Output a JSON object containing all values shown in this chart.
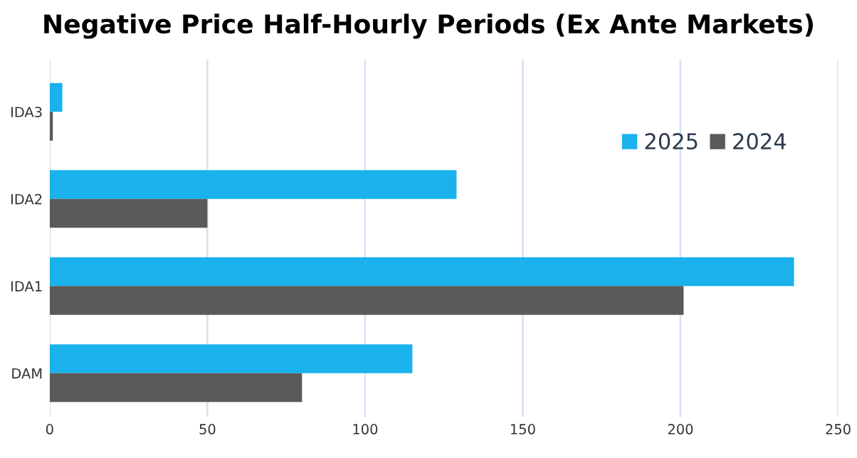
{
  "chart_data": {
    "type": "bar",
    "orientation": "horizontal",
    "title": "Negative Price Half-Hourly Periods (Ex Ante Markets)",
    "categories": [
      "IDA3",
      "IDA2",
      "IDA1",
      "DAM"
    ],
    "series": [
      {
        "name": "2025",
        "color": "#1ab2ec",
        "values": [
          4,
          129,
          236,
          115
        ]
      },
      {
        "name": "2024",
        "color": "#5a5a5a",
        "values": [
          1,
          50,
          201,
          80
        ]
      }
    ],
    "xlim": [
      0,
      250
    ],
    "xticks": [
      0,
      50,
      100,
      150,
      200,
      250
    ],
    "grid": "x",
    "legend": "top right"
  }
}
